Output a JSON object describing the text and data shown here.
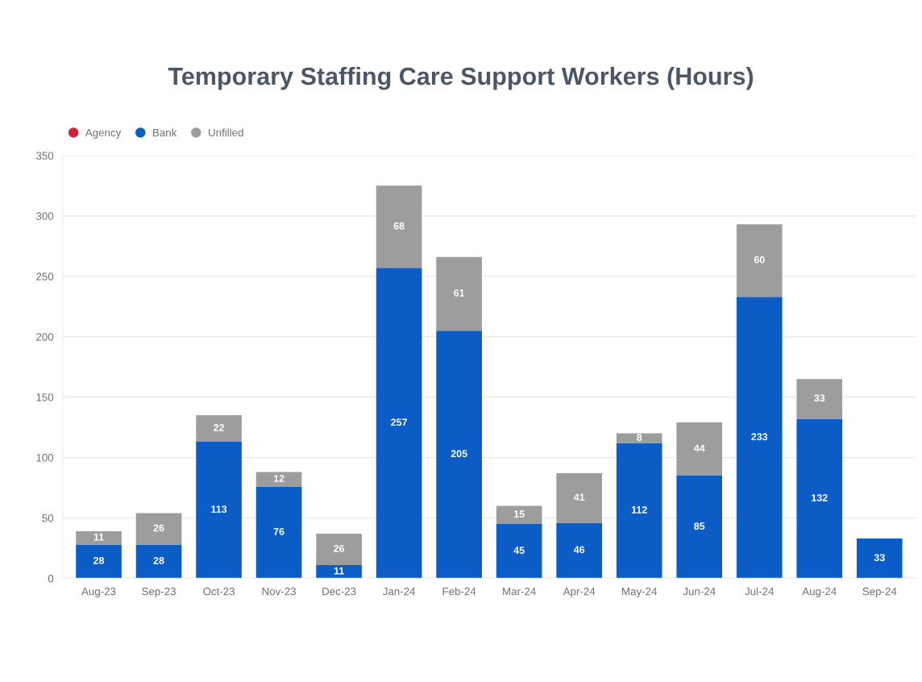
{
  "chart_data": {
    "type": "bar",
    "title": "Temporary Staffing Care Support Workers (Hours)",
    "categories": [
      "Aug-23",
      "Sep-23",
      "Oct-23",
      "Nov-23",
      "Dec-23",
      "Jan-24",
      "Feb-24",
      "Mar-24",
      "Apr-24",
      "May-24",
      "Jun-24",
      "Jul-24",
      "Aug-24",
      "Sep-24"
    ],
    "series": [
      {
        "name": "Agency",
        "color": "#d4213a",
        "values": [
          null,
          null,
          null,
          null,
          null,
          null,
          null,
          null,
          null,
          null,
          null,
          null,
          null,
          null
        ]
      },
      {
        "name": "Bank",
        "color": "#0b5cc4",
        "values": [
          28,
          28,
          113,
          76,
          11,
          257,
          205,
          45,
          46,
          112,
          85,
          233,
          132,
          33
        ]
      },
      {
        "name": "Unfilled",
        "color": "#9d9d9d",
        "values": [
          11,
          26,
          22,
          12,
          26,
          68,
          61,
          15,
          41,
          8,
          44,
          60,
          33,
          null
        ]
      }
    ],
    "stacked": true,
    "data_labels": true,
    "ylim": [
      0,
      350
    ],
    "yticks": [
      0,
      50,
      100,
      150,
      200,
      250,
      300,
      350
    ],
    "grid": "y",
    "legend": "top left"
  }
}
